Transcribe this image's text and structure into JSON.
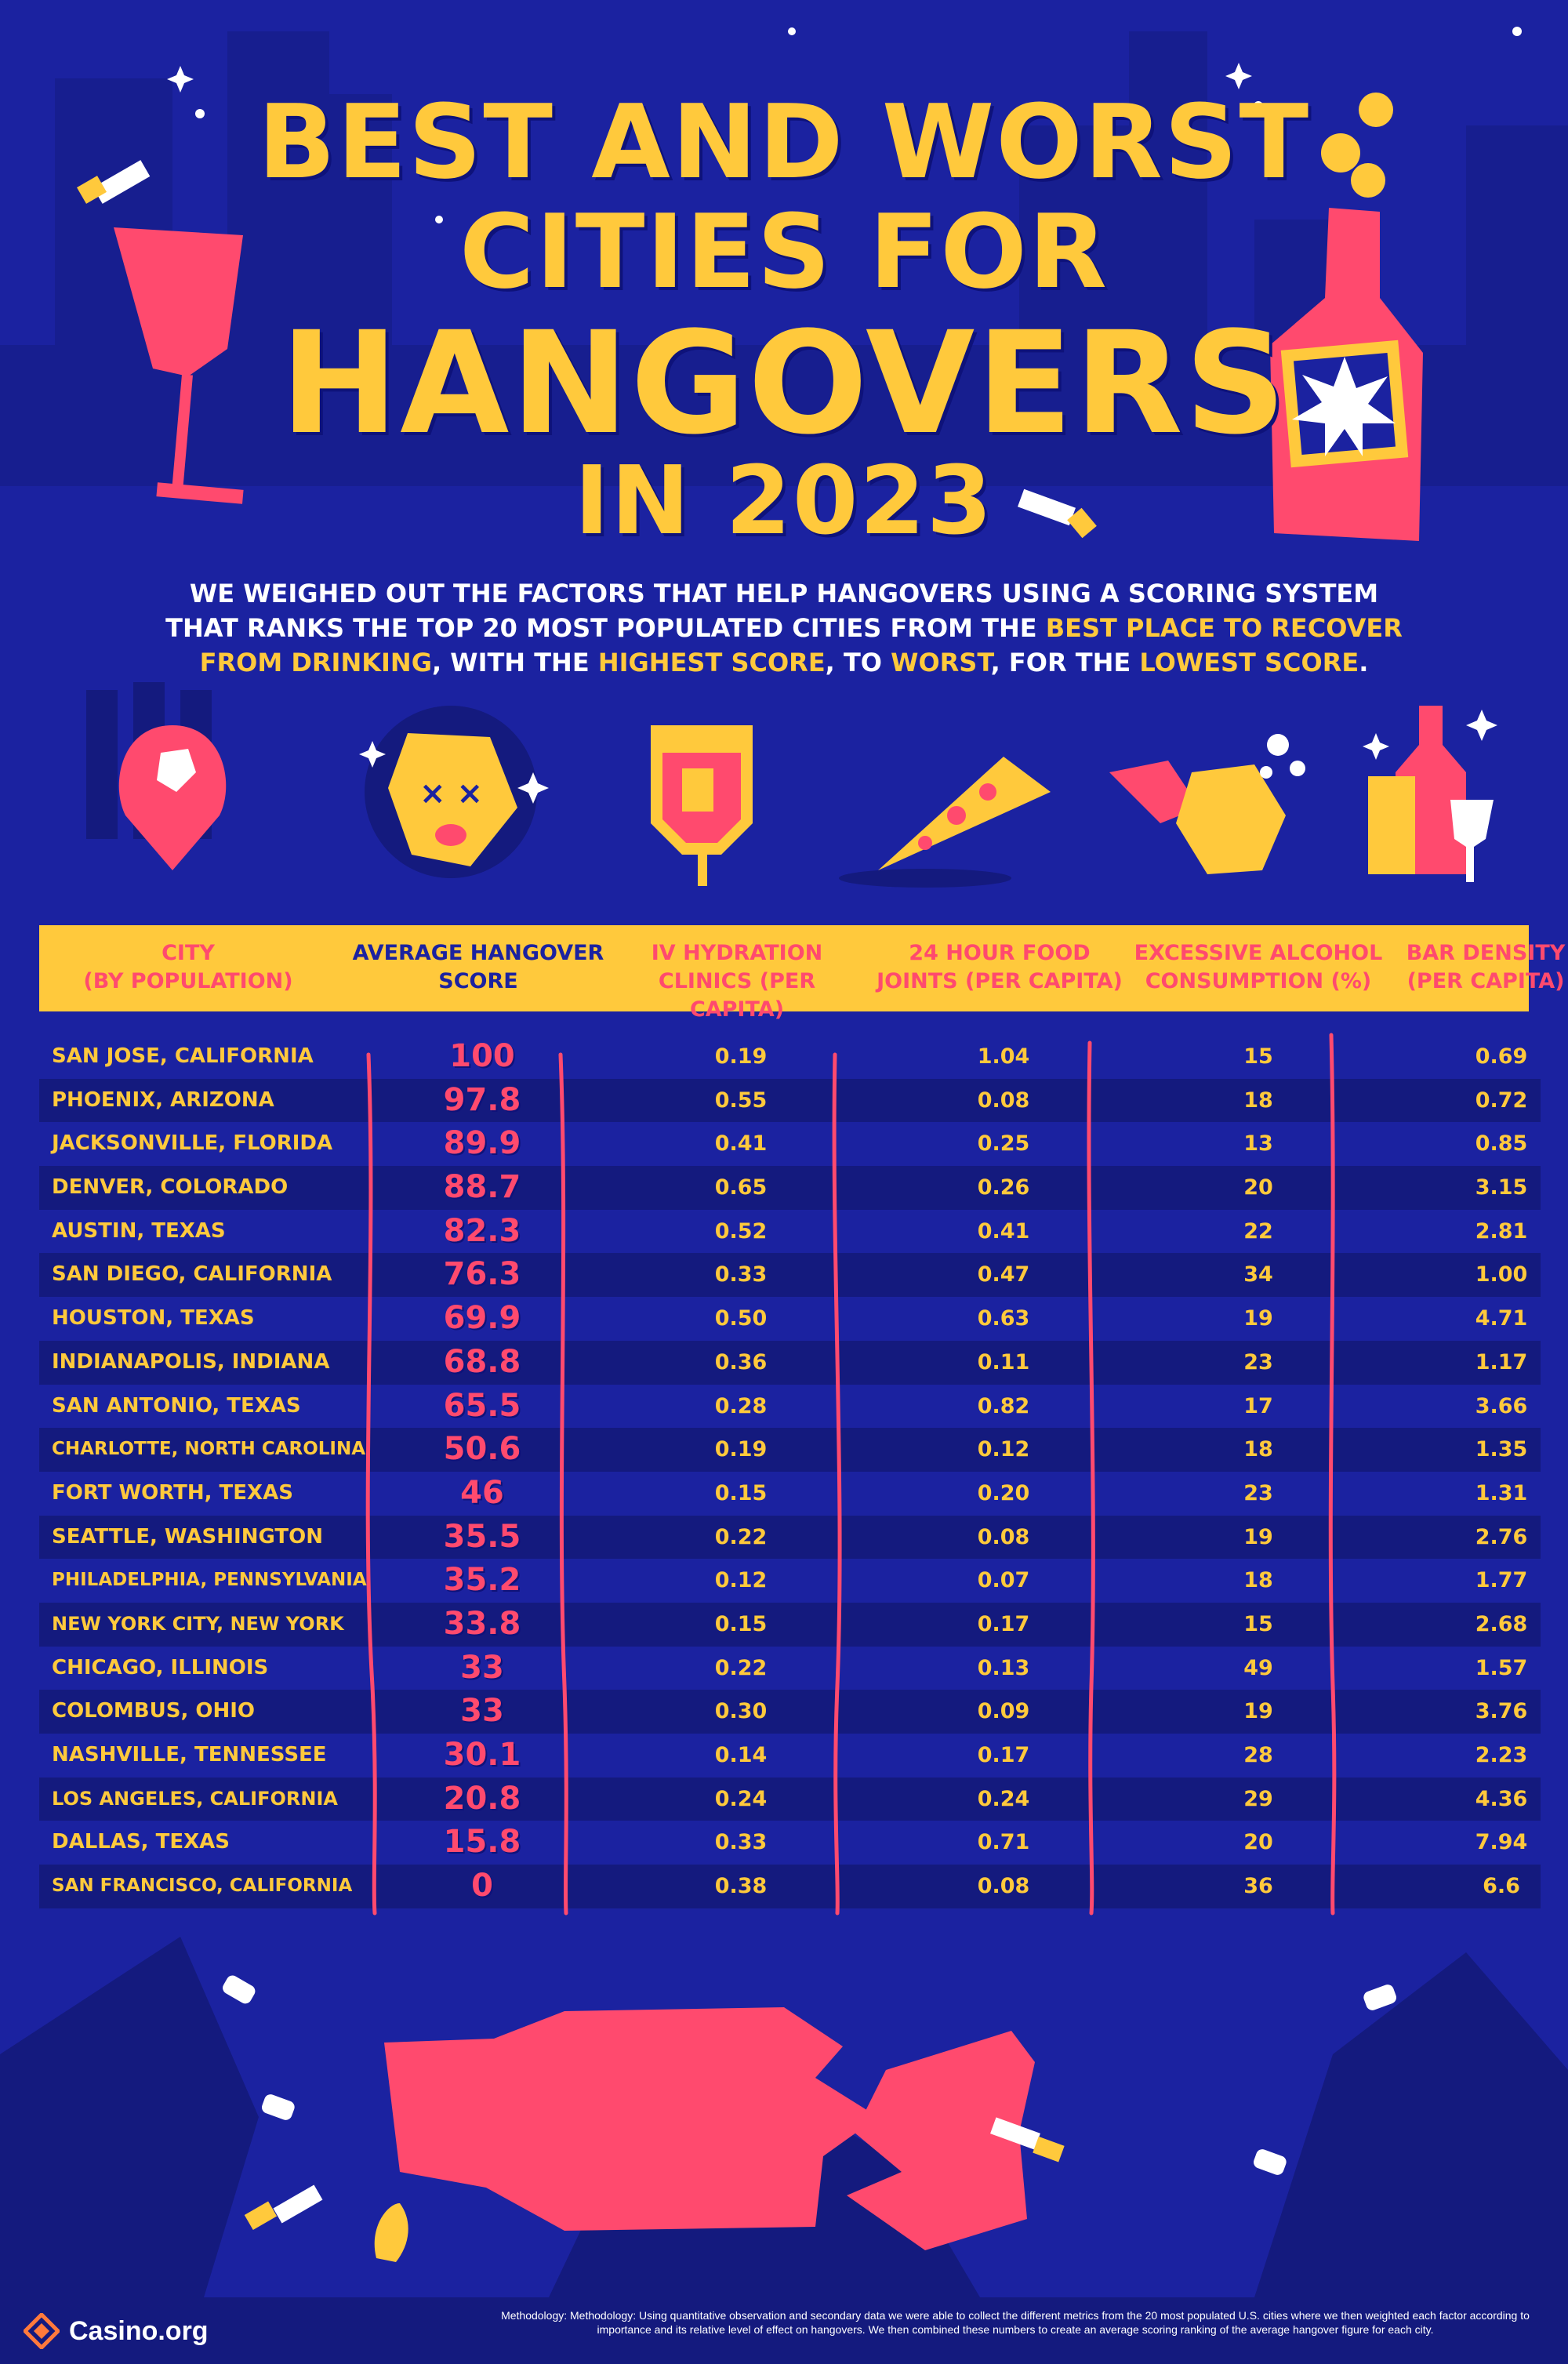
{
  "title": {
    "line1": "BEST AND WORST",
    "line2": "CITIES FOR",
    "line3": "HANGOVERS",
    "line4": "IN 2023"
  },
  "subtitle": {
    "part1": "WE WEIGHED OUT THE FACTORS THAT HELP HANGOVERS USING A SCORING SYSTEM THAT RANKS THE TOP 20 MOST POPULATED CITIES FROM THE ",
    "hl1": "BEST PLACE TO RECOVER FROM DRINKING",
    "part2": ", WITH THE ",
    "hl2": "HIGHEST SCORE",
    "part3": ", TO ",
    "hl3": "WORST",
    "part4": ", FOR THE ",
    "hl4": "LOWEST SCORE",
    "part5": "."
  },
  "icons": [
    "location-pin-icon",
    "dizzy-face-icon",
    "iv-bag-icon",
    "pizza-slice-icon",
    "drinking-face-icon",
    "drinks-icon"
  ],
  "headers": {
    "city_1": "CITY",
    "city_2": "(BY POPULATION)",
    "score_1": "AVERAGE HANGOVER",
    "score_2": "SCORE",
    "iv_1": "IV HYDRATION",
    "iv_2": "CLINICS (PER CAPITA)",
    "food_1": "24 HOUR FOOD",
    "food_2": "JOINTS (PER CAPITA)",
    "alc_1": "EXCESSIVE ALCOHOL",
    "alc_2": "CONSUMPTION (%)",
    "bar_1": "BAR DENSITY",
    "bar_2": "(PER CAPITA)"
  },
  "rows": [
    {
      "city": "SAN JOSE, CALIFORNIA",
      "score": "100",
      "iv": "0.19",
      "food": "1.04",
      "alcohol": "15",
      "bar": "0.69"
    },
    {
      "city": "PHOENIX, ARIZONA",
      "score": "97.8",
      "iv": "0.55",
      "food": "0.08",
      "alcohol": "18",
      "bar": "0.72"
    },
    {
      "city": "JACKSONVILLE, FLORIDA",
      "score": "89.9",
      "iv": "0.41",
      "food": "0.25",
      "alcohol": "13",
      "bar": "0.85"
    },
    {
      "city": "DENVER, COLORADO",
      "score": "88.7",
      "iv": "0.65",
      "food": "0.26",
      "alcohol": "20",
      "bar": "3.15"
    },
    {
      "city": "AUSTIN, TEXAS",
      "score": "82.3",
      "iv": "0.52",
      "food": "0.41",
      "alcohol": "22",
      "bar": "2.81"
    },
    {
      "city": "SAN DIEGO, CALIFORNIA",
      "score": "76.3",
      "iv": "0.33",
      "food": "0.47",
      "alcohol": "34",
      "bar": "1.00"
    },
    {
      "city": "HOUSTON, TEXAS",
      "score": "69.9",
      "iv": "0.50",
      "food": "0.63",
      "alcohol": "19",
      "bar": "4.71"
    },
    {
      "city": "INDIANAPOLIS, INDIANA",
      "score": "68.8",
      "iv": "0.36",
      "food": "0.11",
      "alcohol": "23",
      "bar": "1.17"
    },
    {
      "city": "SAN ANTONIO, TEXAS",
      "score": "65.5",
      "iv": "0.28",
      "food": "0.82",
      "alcohol": "17",
      "bar": "3.66"
    },
    {
      "city": "CHARLOTTE, NORTH CAROLINA",
      "score": "50.6",
      "iv": "0.19",
      "food": "0.12",
      "alcohol": "18",
      "bar": "1.35"
    },
    {
      "city": "FORT WORTH, TEXAS",
      "score": "46",
      "iv": "0.15",
      "food": "0.20",
      "alcohol": "23",
      "bar": "1.31"
    },
    {
      "city": "SEATTLE, WASHINGTON",
      "score": "35.5",
      "iv": "0.22",
      "food": "0.08",
      "alcohol": "19",
      "bar": "2.76"
    },
    {
      "city": "PHILADELPHIA, PENNSYLVANIA",
      "score": "35.2",
      "iv": "0.12",
      "food": "0.07",
      "alcohol": "18",
      "bar": "1.77"
    },
    {
      "city": "NEW YORK CITY, NEW YORK",
      "score": "33.8",
      "iv": "0.15",
      "food": "0.17",
      "alcohol": "15",
      "bar": "2.68"
    },
    {
      "city": "CHICAGO, ILLINOIS",
      "score": "33",
      "iv": "0.22",
      "food": "0.13",
      "alcohol": "49",
      "bar": "1.57"
    },
    {
      "city": "COLOMBUS, OHIO",
      "score": "33",
      "iv": "0.30",
      "food": "0.09",
      "alcohol": "19",
      "bar": "3.76"
    },
    {
      "city": "NASHVILLE, TENNESSEE",
      "score": "30.1",
      "iv": "0.14",
      "food": "0.17",
      "alcohol": "28",
      "bar": "2.23"
    },
    {
      "city": "LOS ANGELES, CALIFORNIA",
      "score": "20.8",
      "iv": "0.24",
      "food": "0.24",
      "alcohol": "29",
      "bar": "4.36"
    },
    {
      "city": "DALLAS, TEXAS",
      "score": "15.8",
      "iv": "0.33",
      "food": "0.71",
      "alcohol": "20",
      "bar": "7.94"
    },
    {
      "city": "SAN FRANCISCO, CALIFORNIA",
      "score": "0",
      "iv": "0.38",
      "food": "0.08",
      "alcohol": "36",
      "bar": "6.6"
    }
  ],
  "footer": {
    "logo_text": "Casino.org",
    "methodology": "Methodology: Methodology: Using quantitative observation and secondary data we were able to collect the different metrics from the 20 most populated U.S. cities where we then weighted each factor according to importance and its relative level of effect on hangovers. We then combined these numbers to create an average scoring ranking of the average hangover figure for each city."
  },
  "colors": {
    "background": "#1b22a0",
    "accent_yellow": "#ffc93c",
    "accent_pink": "#ff4a6e",
    "row_alt": "#141a7e"
  }
}
